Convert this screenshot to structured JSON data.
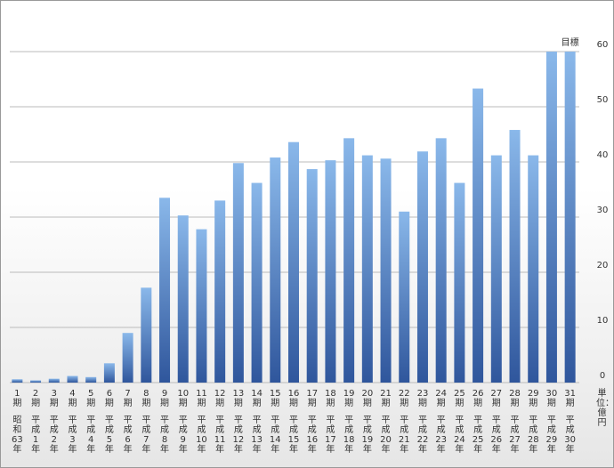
{
  "chart_data": {
    "type": "bar",
    "unit_label": "単位：億円",
    "target_label": "目標",
    "categories": [
      "1期",
      "2期",
      "3期",
      "4期",
      "5期",
      "6期",
      "7期",
      "8期",
      "9期",
      "10期",
      "11期",
      "12期",
      "13期",
      "14期",
      "15期",
      "16期",
      "17期",
      "18期",
      "19期",
      "20期",
      "21期",
      "22期",
      "23期",
      "24期",
      "25期",
      "26期",
      "27期",
      "28期",
      "29期",
      "30期",
      "31期"
    ],
    "eras": [
      "昭和63年",
      "平成1年",
      "平成2年",
      "平成3年",
      "平成4年",
      "平成5年",
      "平成6年",
      "平成7年",
      "平成8年",
      "平成9年",
      "平成10年",
      "平成11年",
      "平成12年",
      "平成13年",
      "平成14年",
      "平成15年",
      "平成16年",
      "平成17年",
      "平成18年",
      "平成19年",
      "平成20年",
      "平成21年",
      "平成22年",
      "平成23年",
      "平成24年",
      "平成25年",
      "平成26年",
      "平成27年",
      "平成28年",
      "平成29年",
      "平成30年"
    ],
    "values": [
      0.6,
      0.4,
      0.7,
      1.2,
      1.0,
      3.5,
      9,
      17.2,
      33.5,
      30.3,
      27.8,
      33,
      39.8,
      36.2,
      40.8,
      43.6,
      38.7,
      40.3,
      44.3,
      41.2,
      40.6,
      31,
      41.9,
      44.3,
      36.2,
      53.3,
      41.2,
      45.8,
      41.2,
      60,
      60
    ],
    "ylim": [
      0,
      60
    ],
    "yticks": [
      0,
      10,
      20,
      30,
      40,
      50,
      60
    ],
    "grid": true,
    "color_top": "#8ab8ea",
    "color_bottom": "#2f569c"
  }
}
